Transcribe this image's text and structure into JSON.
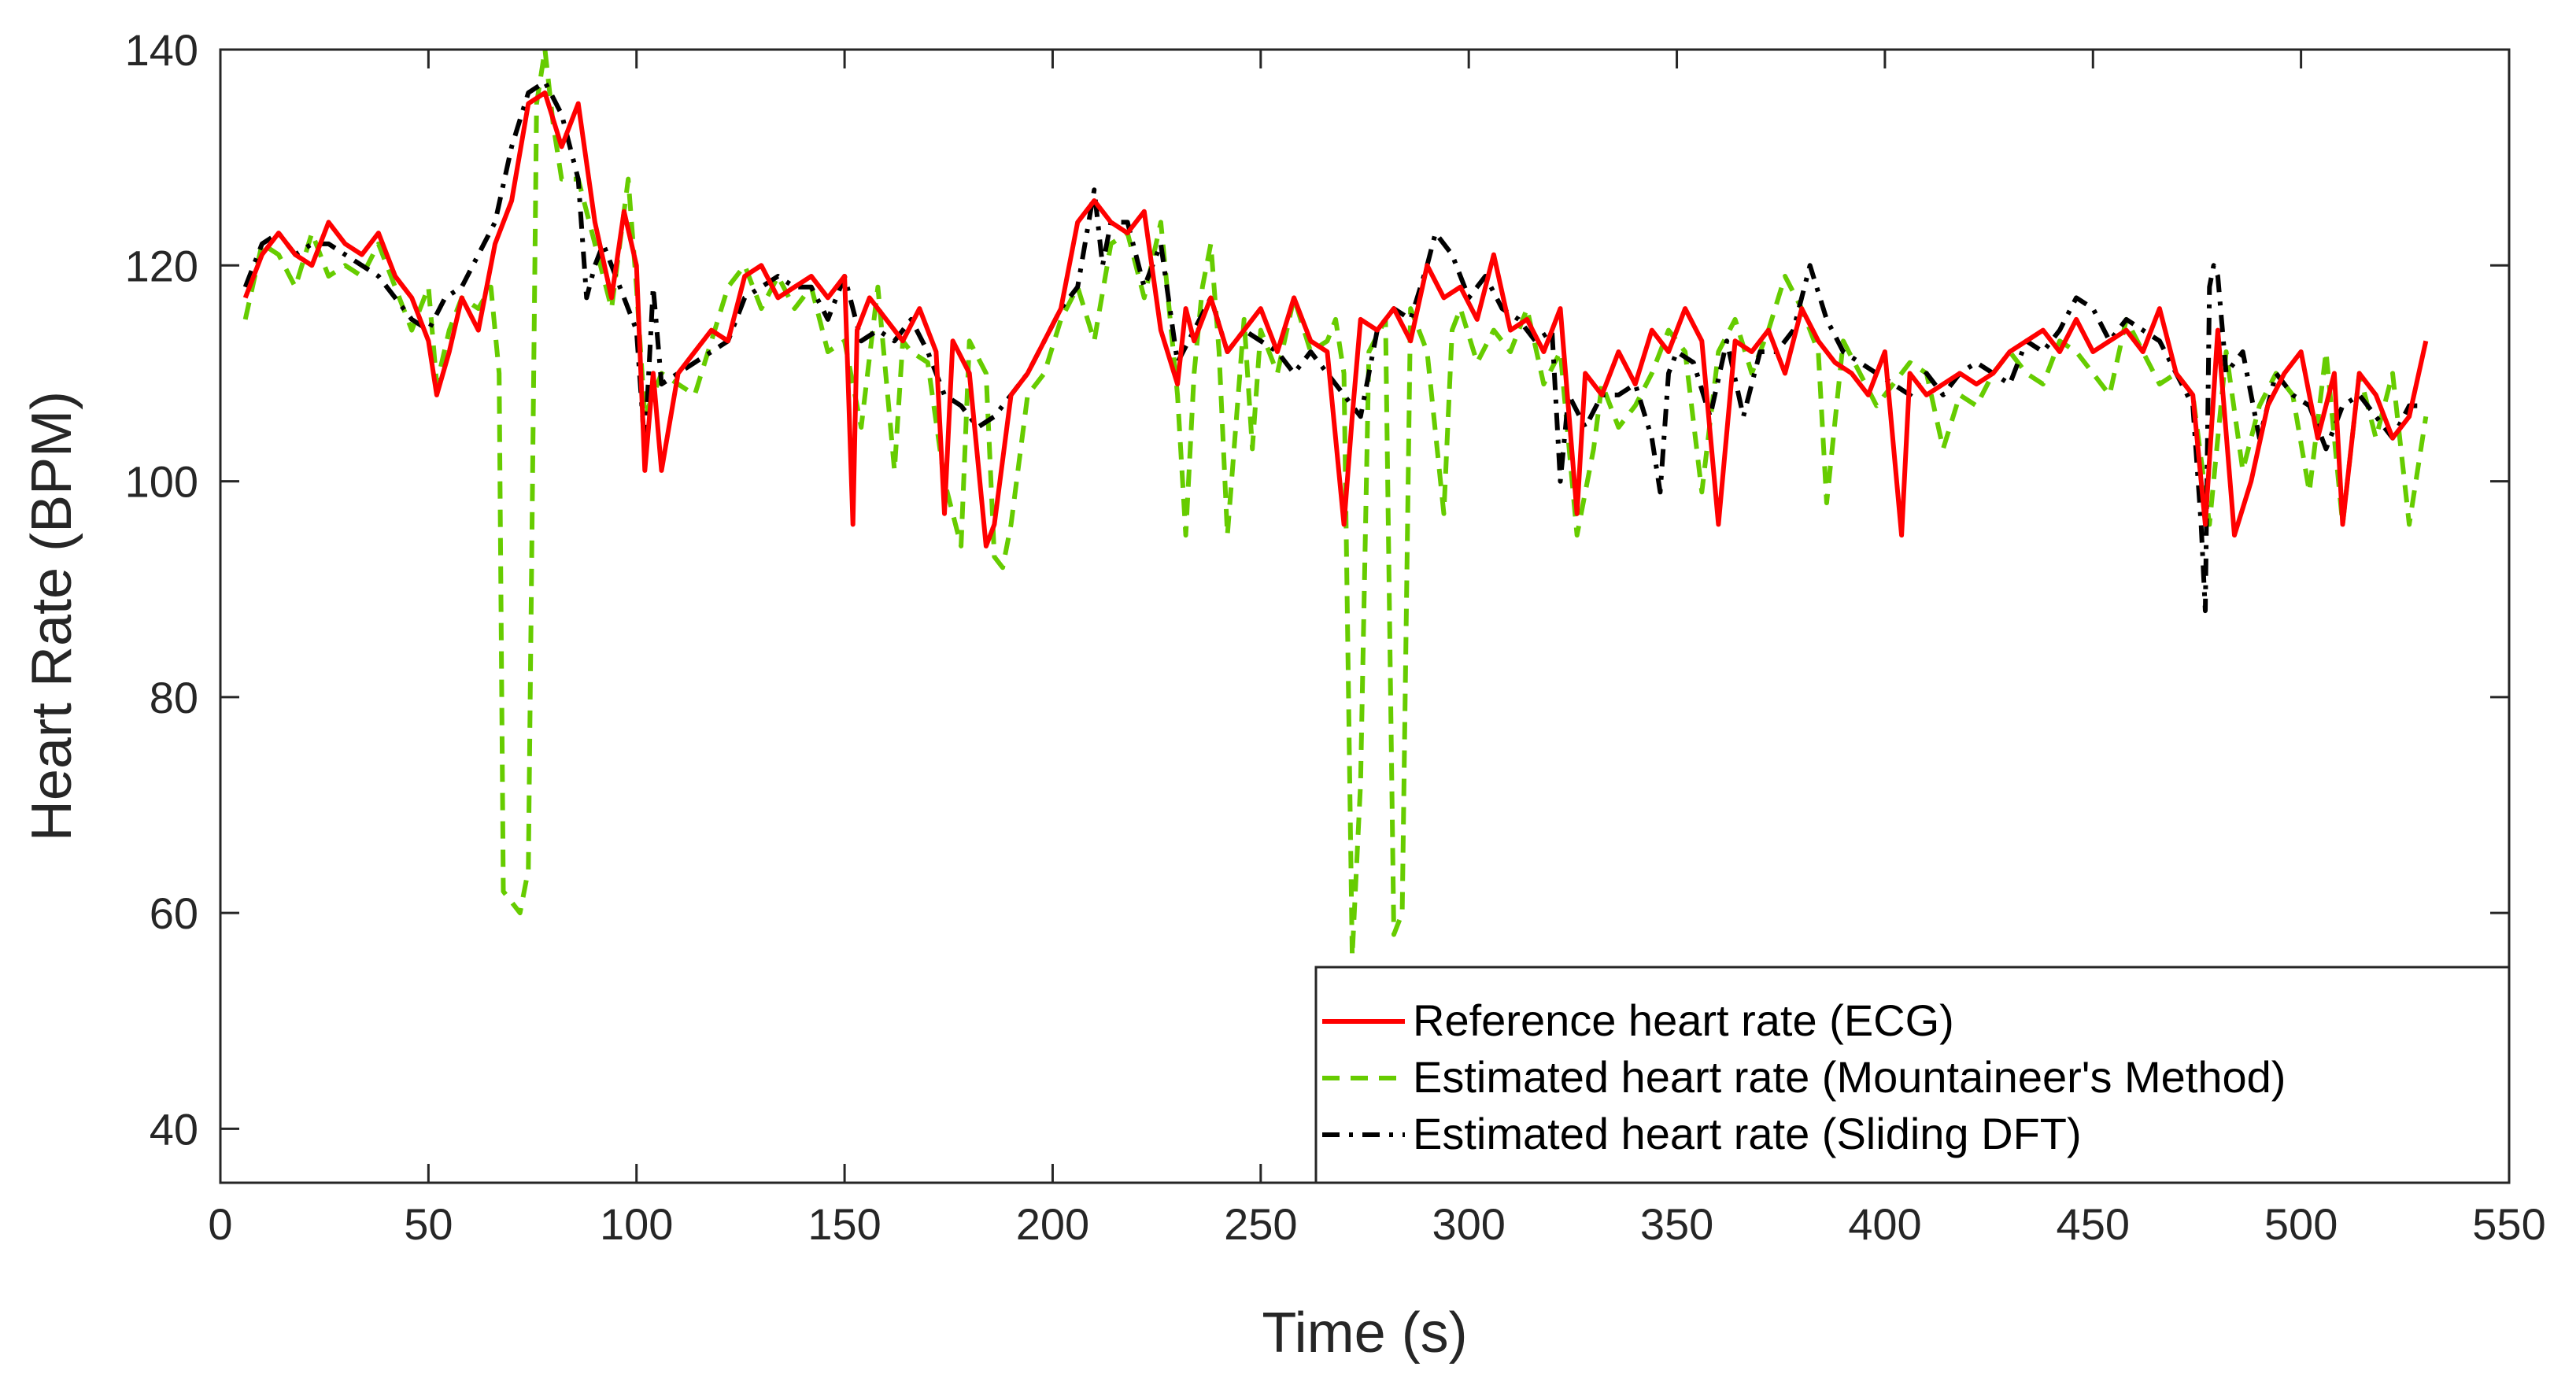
{
  "chart_data": {
    "type": "line",
    "title": "",
    "xlabel": "Time (s)",
    "ylabel": "Heart Rate (BPM)",
    "xlim": [
      0,
      550
    ],
    "ylim": [
      35,
      140
    ],
    "xticks": [
      0,
      50,
      100,
      150,
      200,
      250,
      300,
      350,
      400,
      450,
      500,
      550
    ],
    "yticks": [
      40,
      60,
      80,
      100,
      120,
      140
    ],
    "grid": false,
    "legend_position": "bottom-right",
    "series": [
      {
        "name": "Reference heart rate (ECG)",
        "color": "#ff0000",
        "style": "solid",
        "x": [
          6,
          10,
          14,
          18,
          22,
          26,
          30,
          34,
          38,
          42,
          46,
          50,
          52,
          55,
          58,
          62,
          66,
          70,
          74,
          78,
          82,
          86,
          90,
          94,
          97,
          100,
          102,
          104,
          106,
          110,
          114,
          118,
          122,
          126,
          130,
          134,
          138,
          142,
          146,
          150,
          152,
          153,
          156,
          160,
          164,
          168,
          172,
          174,
          176,
          180,
          184,
          186,
          190,
          194,
          198,
          202,
          206,
          210,
          214,
          218,
          222,
          226,
          230,
          232,
          234,
          238,
          242,
          246,
          250,
          254,
          258,
          262,
          266,
          270,
          272,
          274,
          278,
          282,
          286,
          290,
          294,
          298,
          302,
          306,
          310,
          314,
          318,
          322,
          326,
          328,
          332,
          336,
          340,
          344,
          348,
          352,
          356,
          360,
          364,
          368,
          372,
          376,
          380,
          384,
          388,
          392,
          396,
          400,
          404,
          406,
          410,
          414,
          418,
          422,
          426,
          430,
          434,
          438,
          442,
          446,
          450,
          454,
          458,
          462,
          466,
          470,
          474,
          477,
          480,
          484,
          488,
          492,
          496,
          500,
          504,
          508,
          510,
          514,
          518,
          522,
          526,
          530
        ],
        "y": [
          117,
          121,
          123,
          121,
          120,
          124,
          122,
          121,
          123,
          119,
          117,
          113,
          108,
          112,
          117,
          114,
          122,
          126,
          135,
          136,
          131,
          135,
          124,
          117,
          125,
          120,
          101,
          110,
          101,
          110,
          112,
          114,
          113,
          119,
          120,
          117,
          118,
          119,
          117,
          119,
          96,
          114,
          117,
          115,
          113,
          116,
          112,
          97,
          113,
          110,
          94,
          96,
          108,
          110,
          113,
          116,
          124,
          126,
          124,
          123,
          125,
          114,
          109,
          116,
          113,
          117,
          112,
          114,
          116,
          112,
          117,
          113,
          112,
          96,
          106,
          115,
          114,
          116,
          113,
          120,
          117,
          118,
          115,
          121,
          114,
          115,
          112,
          116,
          97,
          110,
          108,
          112,
          109,
          114,
          112,
          116,
          113,
          96,
          113,
          112,
          114,
          110,
          116,
          113,
          111,
          110,
          108,
          112,
          95,
          110,
          108,
          109,
          110,
          109,
          110,
          112,
          113,
          114,
          112,
          115,
          112,
          113,
          114,
          112,
          116,
          110,
          108,
          96,
          114,
          95,
          100,
          107,
          110,
          112,
          104,
          110,
          96,
          110,
          108,
          104,
          106,
          113
        ]
      },
      {
        "name": "Estimated heart rate (Mountaineer's Method)",
        "color": "#66cc00",
        "style": "dashed",
        "x": [
          6,
          10,
          14,
          18,
          22,
          26,
          30,
          34,
          38,
          42,
          46,
          50,
          52,
          55,
          58,
          62,
          65,
          67,
          68,
          70,
          72,
          74,
          76,
          78,
          80,
          82,
          86,
          90,
          94,
          98,
          100,
          102,
          106,
          110,
          114,
          118,
          122,
          126,
          130,
          134,
          138,
          142,
          146,
          150,
          154,
          158,
          162,
          164,
          166,
          170,
          174,
          178,
          180,
          184,
          186,
          188,
          190,
          194,
          198,
          202,
          206,
          210,
          214,
          218,
          222,
          226,
          230,
          232,
          234,
          236,
          238,
          240,
          242,
          246,
          248,
          250,
          254,
          258,
          262,
          266,
          268,
          270,
          272,
          274,
          276,
          280,
          282,
          284,
          286,
          290,
          294,
          296,
          298,
          302,
          306,
          310,
          314,
          318,
          322,
          326,
          330,
          332,
          336,
          340,
          344,
          348,
          352,
          356,
          360,
          364,
          368,
          372,
          376,
          380,
          384,
          386,
          390,
          394,
          398,
          402,
          406,
          410,
          414,
          418,
          422,
          426,
          430,
          434,
          438,
          442,
          446,
          450,
          454,
          458,
          462,
          466,
          470,
          474,
          478,
          482,
          486,
          490,
          494,
          498,
          502,
          506,
          510,
          514,
          518,
          522,
          526,
          530
        ],
        "y": [
          115,
          122,
          121,
          118,
          123,
          119,
          120,
          119,
          122,
          118,
          114,
          118,
          109,
          114,
          117,
          116,
          118,
          110,
          62,
          61,
          60,
          64,
          135,
          140,
          133,
          128,
          128,
          122,
          116,
          128,
          118,
          106,
          110,
          109,
          108,
          113,
          118,
          120,
          116,
          119,
          116,
          118,
          112,
          113,
          105,
          118,
          101,
          113,
          112,
          111,
          100,
          94,
          113,
          110,
          93,
          92,
          96,
          108,
          110,
          115,
          118,
          113,
          122,
          123,
          117,
          124,
          108,
          95,
          110,
          118,
          122,
          112,
          95,
          115,
          103,
          114,
          110,
          117,
          112,
          113,
          115,
          110,
          56,
          72,
          112,
          115,
          58,
          60,
          116,
          112,
          97,
          114,
          116,
          111,
          114,
          112,
          116,
          109,
          112,
          95,
          103,
          109,
          105,
          107,
          110,
          114,
          112,
          99,
          112,
          115,
          110,
          114,
          119,
          116,
          112,
          98,
          113,
          110,
          107,
          109,
          111,
          110,
          103,
          108,
          107,
          110,
          112,
          110,
          109,
          113,
          112,
          110,
          108,
          115,
          112,
          109,
          110,
          108,
          96,
          112,
          101,
          107,
          110,
          108,
          99,
          112,
          96,
          110,
          104,
          110,
          96,
          106
        ]
      },
      {
        "name": "Estimated heart rate (Sliding DFT)",
        "color": "#000000",
        "style": "dashdot",
        "x": [
          6,
          10,
          14,
          18,
          22,
          26,
          30,
          34,
          38,
          42,
          46,
          50,
          54,
          58,
          62,
          66,
          70,
          74,
          78,
          82,
          86,
          88,
          90,
          92,
          96,
          100,
          102,
          104,
          106,
          110,
          114,
          118,
          122,
          126,
          130,
          134,
          138,
          142,
          146,
          150,
          154,
          158,
          162,
          166,
          170,
          174,
          178,
          182,
          186,
          190,
          194,
          198,
          202,
          206,
          210,
          212,
          214,
          218,
          222,
          226,
          230,
          234,
          238,
          242,
          246,
          250,
          254,
          258,
          262,
          266,
          270,
          274,
          278,
          282,
          286,
          290,
          292,
          296,
          300,
          304,
          308,
          312,
          316,
          320,
          322,
          324,
          328,
          332,
          336,
          340,
          344,
          346,
          348,
          350,
          354,
          358,
          362,
          366,
          370,
          374,
          378,
          382,
          386,
          390,
          394,
          398,
          402,
          406,
          410,
          414,
          418,
          422,
          426,
          430,
          434,
          438,
          442,
          446,
          450,
          454,
          458,
          462,
          466,
          470,
          474,
          476,
          477,
          478,
          479,
          480,
          482,
          486,
          490,
          494,
          498,
          502,
          506,
          510,
          514,
          518,
          522,
          526,
          530
        ],
        "y": [
          118,
          122,
          123,
          121,
          122,
          122,
          121,
          120,
          119,
          117,
          115,
          114,
          117,
          118,
          121,
          124,
          131,
          136,
          137,
          134,
          128,
          117,
          120,
          122,
          118,
          114,
          103,
          118,
          109,
          110,
          111,
          112,
          113,
          117,
          118,
          119,
          118,
          118,
          115,
          119,
          113,
          114,
          113,
          115,
          112,
          108,
          107,
          105,
          106,
          108,
          110,
          113,
          116,
          118,
          127,
          120,
          124,
          124,
          118,
          122,
          111,
          114,
          117,
          112,
          114,
          113,
          112,
          110,
          112,
          110,
          108,
          106,
          114,
          116,
          115,
          120,
          123,
          121,
          117,
          119,
          116,
          115,
          113,
          114,
          100,
          108,
          105,
          108,
          108,
          109,
          104,
          99,
          110,
          112,
          111,
          106,
          113,
          106,
          112,
          112,
          114,
          120,
          115,
          112,
          111,
          110,
          109,
          108,
          110,
          108,
          110,
          111,
          110,
          109,
          113,
          112,
          114,
          117,
          116,
          113,
          115,
          114,
          113,
          110,
          107,
          96,
          88,
          118,
          120,
          119,
          110,
          112,
          104,
          110,
          108,
          107,
          103,
          107,
          108,
          106,
          104,
          107,
          107
        ]
      }
    ]
  }
}
